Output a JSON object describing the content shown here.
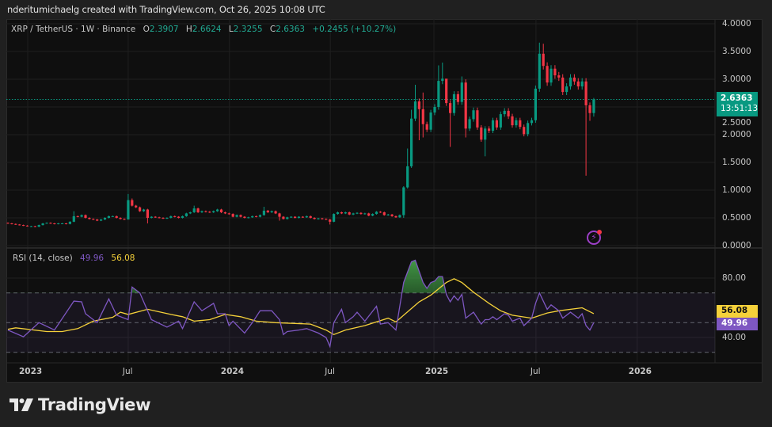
{
  "credit": "nderitumichaelg created with TradingView.com, Oct 26, 2025 10:08 UTC",
  "legend": {
    "symbol": "XRP / TetherUS · 1W · Binance",
    "o_label": "O",
    "o": "2.3907",
    "h_label": "H",
    "h": "2.6624",
    "l_label": "L",
    "l": "2.3255",
    "c_label": "C",
    "c": "2.6363",
    "change": "+0.2455 (+10.27%)"
  },
  "price_tag": {
    "price": "2.6363",
    "countdown": "13:51:13"
  },
  "rsi_legend": {
    "title": "RSI (14, close)",
    "rsi": "49.96",
    "ma": "56.08"
  },
  "rsi_tags": {
    "ma": "56.08",
    "rsi": "49.96"
  },
  "brand": "TradingView",
  "colors": {
    "up": "#089981",
    "down": "#f23645",
    "rsi": "#7e57c2",
    "rsi_ma": "#f5d13a",
    "bg": "#0f0f0f"
  },
  "chart_data": [
    {
      "type": "candlestick",
      "title": "XRP / TetherUS · 1W · Binance",
      "ylim": [
        0,
        4
      ],
      "y_ticks": [
        "4.0000",
        "3.5000",
        "3.0000",
        "2.5000",
        "2.0000",
        "1.5000",
        "1.0000",
        "0.5000",
        "0.0000"
      ],
      "y_tick_values": [
        4,
        3.5,
        3,
        2.5,
        2,
        1.5,
        1,
        0.5,
        0
      ],
      "x_ticks": [
        {
          "label": "2023",
          "week": 5.1
        },
        {
          "label": "Jul",
          "week": 31
        },
        {
          "label": "2024",
          "week": 57.1
        },
        {
          "label": "Jul",
          "week": 83.1
        },
        {
          "label": "2025",
          "week": 109.8
        },
        {
          "label": "Jul",
          "week": 136.1
        },
        {
          "label": "2026",
          "week": 162.2
        }
      ],
      "last_price": 2.6363,
      "first_open": 0.41,
      "close": [
        0.4,
        0.39,
        0.38,
        0.37,
        0.36,
        0.35,
        0.35,
        0.34,
        0.37,
        0.4,
        0.41,
        0.4,
        0.39,
        0.4,
        0.4,
        0.39,
        0.43,
        0.53,
        0.52,
        0.55,
        0.5,
        0.48,
        0.47,
        0.45,
        0.47,
        0.5,
        0.53,
        0.53,
        0.5,
        0.48,
        0.47,
        0.82,
        0.72,
        0.69,
        0.62,
        0.65,
        0.5,
        0.52,
        0.51,
        0.5,
        0.49,
        0.5,
        0.53,
        0.52,
        0.5,
        0.53,
        0.58,
        0.6,
        0.67,
        0.6,
        0.62,
        0.61,
        0.6,
        0.62,
        0.65,
        0.6,
        0.58,
        0.57,
        0.52,
        0.55,
        0.52,
        0.5,
        0.51,
        0.53,
        0.52,
        0.55,
        0.63,
        0.6,
        0.62,
        0.58,
        0.52,
        0.48,
        0.51,
        0.52,
        0.5,
        0.52,
        0.51,
        0.53,
        0.5,
        0.48,
        0.49,
        0.48,
        0.47,
        0.43,
        0.57,
        0.6,
        0.58,
        0.6,
        0.56,
        0.58,
        0.59,
        0.57,
        0.58,
        0.54,
        0.57,
        0.61,
        0.6,
        0.55,
        0.56,
        0.53,
        0.51,
        0.55,
        1.05,
        1.43,
        2.29,
        2.6,
        2.46,
        2.19,
        2.09,
        2.4,
        2.5,
        2.97,
        3.01,
        2.57,
        2.39,
        2.73,
        2.59,
        2.94,
        2.11,
        2.28,
        2.44,
        2.13,
        1.91,
        2.11,
        2.07,
        2.26,
        2.13,
        2.37,
        2.43,
        2.33,
        2.17,
        2.26,
        2.14,
        2.01,
        2.21,
        2.26,
        2.83,
        3.46,
        3.24,
        2.94,
        3.19,
        3.07,
        3.03,
        2.77,
        2.87,
        3.03,
        2.96,
        2.87,
        2.96,
        2.53,
        2.39,
        2.6363
      ],
      "extremes": [
        {
          "week": 17,
          "high": 0.62
        },
        {
          "week": 31,
          "high": 0.93,
          "low": 0.47
        },
        {
          "week": 32,
          "high": 0.85
        },
        {
          "week": 36,
          "low": 0.4
        },
        {
          "week": 48,
          "high": 0.72
        },
        {
          "week": 66,
          "high": 0.7
        },
        {
          "week": 70,
          "low": 0.45
        },
        {
          "week": 83,
          "low": 0.38
        },
        {
          "week": 102,
          "low": 0.5
        },
        {
          "week": 103,
          "high": 1.75
        },
        {
          "week": 104,
          "high": 2.45
        },
        {
          "week": 105,
          "high": 2.9
        },
        {
          "week": 106,
          "low": 1.9
        },
        {
          "week": 107,
          "high": 2.76,
          "low": 1.95
        },
        {
          "week": 111,
          "high": 3.25
        },
        {
          "week": 112,
          "high": 3.3
        },
        {
          "week": 113,
          "high": 3.0
        },
        {
          "week": 114,
          "low": 1.78
        },
        {
          "week": 117,
          "high": 3.05
        },
        {
          "week": 118,
          "low": 1.95
        },
        {
          "week": 123,
          "low": 1.61
        },
        {
          "week": 137,
          "high": 3.66
        },
        {
          "week": 138,
          "high": 3.64
        },
        {
          "week": 149,
          "low": 1.26
        },
        {
          "week": 150,
          "low": 2.25
        },
        {
          "week": 151,
          "high": 2.6624,
          "low": 2.3255
        }
      ]
    },
    {
      "type": "line",
      "title": "RSI (14, close)",
      "ylim": [
        20,
        92
      ],
      "y_ticks": [
        "80.00",
        "40.00"
      ],
      "y_tick_values": [
        80,
        40
      ],
      "bands": {
        "upper": 70,
        "middle": 50,
        "lower": 30
      },
      "series": [
        {
          "name": "RSI",
          "points": [
            [
              0,
              45
            ],
            [
              4,
              40.5
            ],
            [
              8,
              50
            ],
            [
              12,
              45
            ],
            [
              17,
              64.5
            ],
            [
              19,
              64
            ],
            [
              20,
              56
            ],
            [
              23,
              50
            ],
            [
              26,
              66
            ],
            [
              28,
              55
            ],
            [
              31,
              52
            ],
            [
              32,
              74
            ],
            [
              34,
              70
            ],
            [
              37,
              52
            ],
            [
              41,
              47
            ],
            [
              44,
              51
            ],
            [
              45,
              46
            ],
            [
              48,
              64
            ],
            [
              50,
              58
            ],
            [
              53,
              63
            ],
            [
              54,
              56
            ],
            [
              56,
              56
            ],
            [
              57,
              48
            ],
            [
              58,
              51
            ],
            [
              61,
              43
            ],
            [
              63,
              50
            ],
            [
              65,
              58
            ],
            [
              68,
              58
            ],
            [
              70,
              52
            ],
            [
              71,
              42
            ],
            [
              72,
              44
            ],
            [
              75,
              45
            ],
            [
              77,
              46
            ],
            [
              80,
              43
            ],
            [
              82,
              40
            ],
            [
              83,
              34
            ],
            [
              84,
              50
            ],
            [
              86,
              59
            ],
            [
              87,
              50
            ],
            [
              89,
              54
            ],
            [
              90,
              57
            ],
            [
              92,
              51
            ],
            [
              95,
              61
            ],
            [
              96,
              49
            ],
            [
              98,
              50
            ],
            [
              100,
              45
            ],
            [
              102,
              77
            ],
            [
              104,
              91
            ],
            [
              105,
              92
            ],
            [
              107,
              77
            ],
            [
              108,
              73
            ],
            [
              109,
              77
            ],
            [
              110,
              78
            ],
            [
              111,
              81
            ],
            [
              112,
              81
            ],
            [
              113,
              69
            ],
            [
              114,
              64
            ],
            [
              115,
              68
            ],
            [
              116,
              65
            ],
            [
              117,
              69
            ],
            [
              118,
              53
            ],
            [
              120,
              57
            ],
            [
              122,
              49
            ],
            [
              123,
              52
            ],
            [
              124,
              52
            ],
            [
              125,
              54
            ],
            [
              126,
              52
            ],
            [
              128,
              56
            ],
            [
              129,
              55
            ],
            [
              130,
              51
            ],
            [
              132,
              53
            ],
            [
              133,
              48
            ],
            [
              135,
              53
            ],
            [
              136,
              63
            ],
            [
              137,
              70
            ],
            [
              139,
              59
            ],
            [
              140,
              62
            ],
            [
              142,
              58
            ],
            [
              143,
              53
            ],
            [
              145,
              57
            ],
            [
              147,
              53
            ],
            [
              148,
              56
            ],
            [
              149,
              48
            ],
            [
              150,
              45
            ],
            [
              151,
              49.96
            ]
          ]
        },
        {
          "name": "RSI-based MA",
          "points": [
            [
              0,
              45.5
            ],
            [
              2,
              46.5
            ],
            [
              10,
              44
            ],
            [
              14,
              44
            ],
            [
              18,
              46
            ],
            [
              22,
              51
            ],
            [
              27,
              53.6
            ],
            [
              29,
              57
            ],
            [
              31,
              55.5
            ],
            [
              36,
              59
            ],
            [
              42,
              55.5
            ],
            [
              45,
              54
            ],
            [
              48,
              51
            ],
            [
              52,
              52
            ],
            [
              56,
              55.5
            ],
            [
              60,
              54
            ],
            [
              64,
              51
            ],
            [
              69,
              50
            ],
            [
              78,
              49
            ],
            [
              82,
              45
            ],
            [
              84,
              42
            ],
            [
              87,
              45
            ],
            [
              92,
              48
            ],
            [
              98,
              53
            ],
            [
              100,
              50.5
            ],
            [
              102,
              55
            ],
            [
              106,
              64
            ],
            [
              109,
              68.5
            ],
            [
              113,
              77
            ],
            [
              115,
              79.5
            ],
            [
              117,
              77
            ],
            [
              120,
              70.5
            ],
            [
              124,
              63
            ],
            [
              127,
              58
            ],
            [
              130,
              55
            ],
            [
              135,
              53
            ],
            [
              139,
              56.5
            ],
            [
              142,
              58
            ],
            [
              148,
              60
            ],
            [
              151,
              56.08
            ]
          ]
        }
      ]
    }
  ]
}
